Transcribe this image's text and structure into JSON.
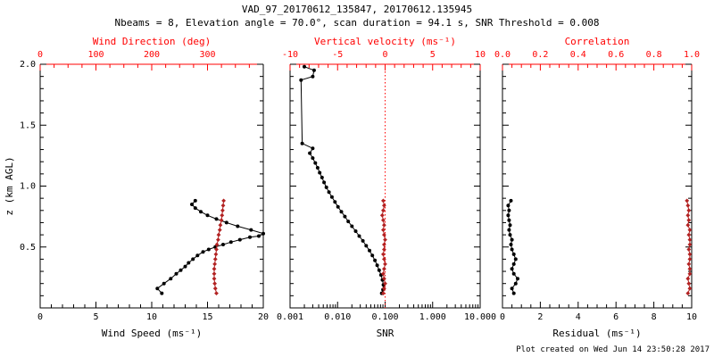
{
  "header": {
    "title": "VAD_97_20170612_135847, 20170612.135945",
    "subtitle": "Nbeams = 8, Elevation angle = 70.0°, scan duration = 94.1 s, SNR Threshold = 0.008"
  },
  "footer": {
    "created": "Plot created on Wed Jun 14 23:50:28 2017"
  },
  "colors": {
    "axis_black": "#000000",
    "axis_red": "#ff0000",
    "series_black": "#000000",
    "series_red": "#b22222",
    "background": "#ffffff"
  },
  "chart_data": [
    {
      "type": "line",
      "name": "wind-speed-direction-panel",
      "xlabel": "Wind Speed (ms⁻¹)",
      "top_xlabel": "Wind Direction (deg)",
      "ylabel": "z (km AGL)",
      "xlim": [
        0,
        20
      ],
      "xticks": [
        0,
        5,
        10,
        15,
        20
      ],
      "xtick_labels": [
        "0",
        "5",
        "10",
        "15",
        "20"
      ],
      "xminor": 1,
      "top_xlim": [
        0,
        400
      ],
      "top_xticks": [
        0,
        100,
        200,
        300
      ],
      "top_xtick_labels": [
        "0",
        "100",
        "200",
        "300"
      ],
      "top_xminor": 25,
      "ylim": [
        0,
        2
      ],
      "yticks": [
        0,
        0.5,
        1,
        1.5,
        2
      ],
      "ytick_labels": [
        "",
        "0.5",
        "1.0",
        "1.5",
        "2.0"
      ],
      "yminor": 0.1,
      "show_ytick_labels": true,
      "series": [
        {
          "name": "wind-speed",
          "axis": "bottom",
          "color_key": "series_black",
          "marker": "circle",
          "points": [
            [
              10.9,
              0.12
            ],
            [
              10.5,
              0.16
            ],
            [
              11.1,
              0.2
            ],
            [
              11.7,
              0.24
            ],
            [
              12.2,
              0.28
            ],
            [
              12.6,
              0.31
            ],
            [
              13.0,
              0.34
            ],
            [
              13.3,
              0.37
            ],
            [
              13.7,
              0.4
            ],
            [
              14.1,
              0.43
            ],
            [
              14.6,
              0.46
            ],
            [
              15.1,
              0.48
            ],
            [
              15.7,
              0.5
            ],
            [
              16.4,
              0.52
            ],
            [
              17.1,
              0.54
            ],
            [
              17.9,
              0.56
            ],
            [
              18.8,
              0.58
            ],
            [
              19.6,
              0.59
            ],
            [
              20.0,
              0.61
            ],
            [
              18.9,
              0.64
            ],
            [
              17.7,
              0.67
            ],
            [
              16.7,
              0.7
            ],
            [
              15.8,
              0.73
            ],
            [
              15.0,
              0.76
            ],
            [
              14.4,
              0.79
            ],
            [
              13.9,
              0.82
            ],
            [
              13.6,
              0.85
            ],
            [
              13.9,
              0.88
            ]
          ]
        },
        {
          "name": "wind-direction",
          "axis": "top",
          "color_key": "series_red",
          "marker": "diamond",
          "points": [
            [
              316,
              0.12
            ],
            [
              314,
              0.16
            ],
            [
              313,
              0.2
            ],
            [
              312,
              0.24
            ],
            [
              312,
              0.28
            ],
            [
              312,
              0.32
            ],
            [
              313,
              0.36
            ],
            [
              314,
              0.4
            ],
            [
              315,
              0.44
            ],
            [
              316,
              0.48
            ],
            [
              317,
              0.52
            ],
            [
              319,
              0.56
            ],
            [
              320,
              0.6
            ],
            [
              322,
              0.64
            ],
            [
              323,
              0.68
            ],
            [
              325,
              0.72
            ],
            [
              326,
              0.76
            ],
            [
              327,
              0.8
            ],
            [
              328,
              0.84
            ],
            [
              329,
              0.88
            ]
          ]
        }
      ]
    },
    {
      "type": "line",
      "name": "snr-vertical-velocity-panel",
      "xlabel": "SNR",
      "top_xlabel": "Vertical velocity (ms⁻¹)",
      "xscale": "log",
      "xlim": [
        0.001,
        10
      ],
      "xticks": [
        0.001,
        0.01,
        0.1,
        1,
        10
      ],
      "xtick_labels": [
        "0.001",
        "0.010",
        "0.100",
        "1.000",
        "10.000"
      ],
      "top_xlim": [
        -10,
        10
      ],
      "top_xticks": [
        -10,
        -5,
        0,
        5,
        10
      ],
      "top_xtick_labels": [
        "-10",
        "-5",
        "0",
        "5",
        "10"
      ],
      "top_xminor": 1,
      "ylim": [
        0,
        2
      ],
      "yticks": [
        0,
        0.5,
        1,
        1.5,
        2
      ],
      "ytick_labels": [
        "",
        "0.5",
        "1.0",
        "1.5",
        "2.0"
      ],
      "yminor": 0.1,
      "show_ytick_labels": false,
      "vline_top": 0,
      "series": [
        {
          "name": "snr",
          "axis": "bottom",
          "color_key": "series_black",
          "marker": "circle",
          "points": [
            [
              0.002,
              1.98
            ],
            [
              0.0032,
              1.95
            ],
            [
              0.003,
              1.9
            ],
            [
              0.0017,
              1.87
            ],
            [
              0.0018,
              1.35
            ],
            [
              0.003,
              1.31
            ],
            [
              0.0026,
              1.27
            ],
            [
              0.003,
              1.23
            ],
            [
              0.0034,
              1.19
            ],
            [
              0.0038,
              1.15
            ],
            [
              0.0042,
              1.11
            ],
            [
              0.0047,
              1.07
            ],
            [
              0.0052,
              1.03
            ],
            [
              0.0058,
              0.99
            ],
            [
              0.0066,
              0.95
            ],
            [
              0.0076,
              0.91
            ],
            [
              0.0088,
              0.87
            ],
            [
              0.0102,
              0.83
            ],
            [
              0.012,
              0.79
            ],
            [
              0.0142,
              0.75
            ],
            [
              0.0168,
              0.71
            ],
            [
              0.02,
              0.67
            ],
            [
              0.024,
              0.63
            ],
            [
              0.0285,
              0.59
            ],
            [
              0.034,
              0.55
            ],
            [
              0.04,
              0.51
            ],
            [
              0.047,
              0.47
            ],
            [
              0.054,
              0.43
            ],
            [
              0.061,
              0.39
            ],
            [
              0.068,
              0.35
            ],
            [
              0.075,
              0.31
            ],
            [
              0.082,
              0.27
            ],
            [
              0.088,
              0.23
            ],
            [
              0.092,
              0.19
            ],
            [
              0.09,
              0.15
            ],
            [
              0.085,
              0.12
            ]
          ]
        },
        {
          "name": "vertical-velocity",
          "axis": "top",
          "color_key": "series_red",
          "marker": "diamond",
          "points": [
            [
              -0.2,
              0.12
            ],
            [
              -0.1,
              0.16
            ],
            [
              0.0,
              0.2
            ],
            [
              -0.1,
              0.24
            ],
            [
              -0.2,
              0.28
            ],
            [
              -0.1,
              0.32
            ],
            [
              0.0,
              0.36
            ],
            [
              -0.1,
              0.4
            ],
            [
              -0.2,
              0.44
            ],
            [
              -0.1,
              0.48
            ],
            [
              -0.1,
              0.52
            ],
            [
              0.0,
              0.56
            ],
            [
              -0.1,
              0.6
            ],
            [
              -0.2,
              0.64
            ],
            [
              -0.1,
              0.68
            ],
            [
              -0.2,
              0.72
            ],
            [
              -0.3,
              0.76
            ],
            [
              -0.2,
              0.8
            ],
            [
              -0.1,
              0.84
            ],
            [
              -0.2,
              0.88
            ]
          ]
        }
      ]
    },
    {
      "type": "line",
      "name": "residual-correlation-panel",
      "xlabel": "Residual (ms⁻¹)",
      "top_xlabel": "Correlation",
      "xlim": [
        0,
        10
      ],
      "xticks": [
        0,
        2,
        4,
        6,
        8,
        10
      ],
      "xtick_labels": [
        "0",
        "2",
        "4",
        "6",
        "8",
        "10"
      ],
      "xminor": 0.5,
      "top_xlim": [
        0,
        1
      ],
      "top_xticks": [
        0,
        0.2,
        0.4,
        0.6,
        0.8,
        1
      ],
      "top_xtick_labels": [
        "0.0",
        "0.2",
        "0.4",
        "0.6",
        "0.8",
        "1.0"
      ],
      "top_xminor": 0.05,
      "ylim": [
        0,
        2
      ],
      "yticks": [
        0,
        0.5,
        1,
        1.5,
        2
      ],
      "ytick_labels": [
        "",
        "0.5",
        "1.0",
        "1.5",
        "2.0"
      ],
      "yminor": 0.1,
      "show_ytick_labels": false,
      "series": [
        {
          "name": "residual",
          "axis": "bottom",
          "color_key": "series_black",
          "marker": "circle",
          "points": [
            [
              0.6,
              0.12
            ],
            [
              0.5,
              0.16
            ],
            [
              0.7,
              0.2
            ],
            [
              0.8,
              0.24
            ],
            [
              0.6,
              0.28
            ],
            [
              0.5,
              0.32
            ],
            [
              0.6,
              0.36
            ],
            [
              0.7,
              0.4
            ],
            [
              0.6,
              0.44
            ],
            [
              0.5,
              0.48
            ],
            [
              0.45,
              0.52
            ],
            [
              0.5,
              0.56
            ],
            [
              0.4,
              0.6
            ],
            [
              0.35,
              0.64
            ],
            [
              0.4,
              0.68
            ],
            [
              0.35,
              0.72
            ],
            [
              0.3,
              0.76
            ],
            [
              0.35,
              0.8
            ],
            [
              0.3,
              0.84
            ],
            [
              0.45,
              0.88
            ]
          ]
        },
        {
          "name": "correlation",
          "axis": "top",
          "color_key": "series_red",
          "marker": "diamond",
          "points": [
            [
              0.98,
              0.12
            ],
            [
              0.99,
              0.16
            ],
            [
              0.985,
              0.2
            ],
            [
              0.98,
              0.24
            ],
            [
              0.99,
              0.28
            ],
            [
              0.99,
              0.32
            ],
            [
              0.985,
              0.36
            ],
            [
              0.99,
              0.4
            ],
            [
              0.99,
              0.44
            ],
            [
              0.985,
              0.48
            ],
            [
              0.99,
              0.52
            ],
            [
              0.99,
              0.56
            ],
            [
              0.985,
              0.6
            ],
            [
              0.99,
              0.64
            ],
            [
              0.98,
              0.68
            ],
            [
              0.985,
              0.72
            ],
            [
              0.98,
              0.76
            ],
            [
              0.985,
              0.8
            ],
            [
              0.98,
              0.84
            ],
            [
              0.975,
              0.88
            ]
          ]
        }
      ]
    }
  ]
}
